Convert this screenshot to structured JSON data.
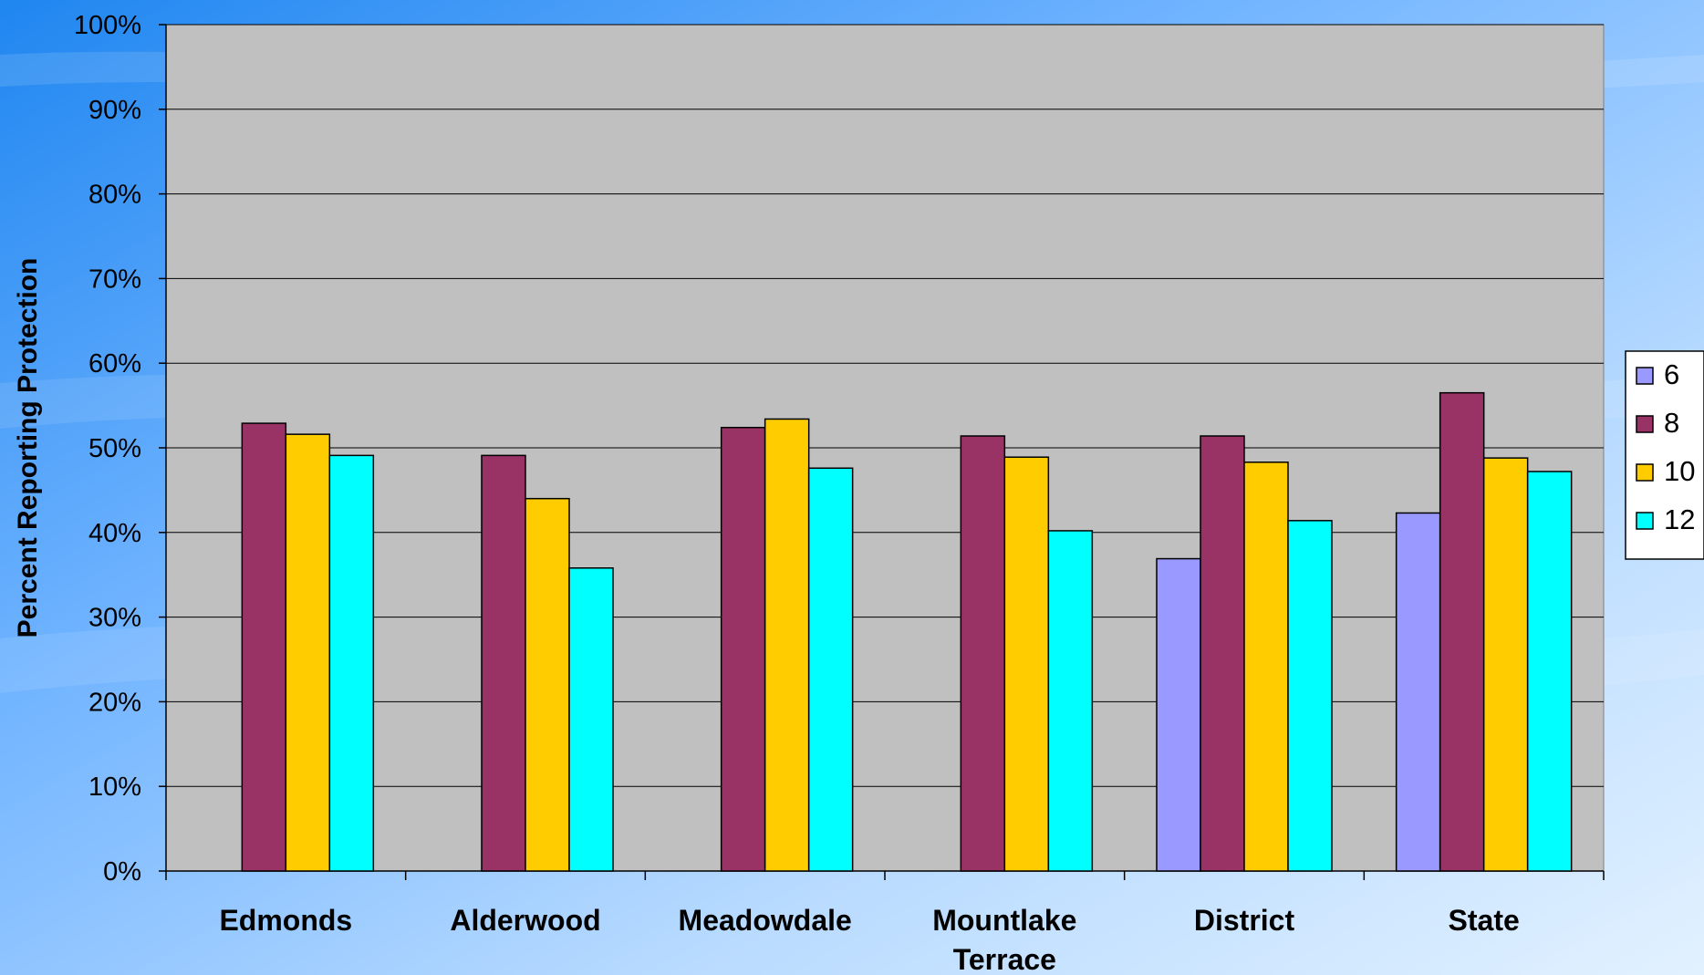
{
  "colors": {
    "plot_background": "#C0C0C0",
    "gridline": "#000000",
    "page_gradient_dark": "#2E8BE8",
    "page_gradient_light": "#D8ECFF"
  },
  "chart_data": {
    "type": "bar",
    "title": "",
    "xlabel": "",
    "ylabel": "Percent Reporting Protection",
    "ylim": [
      0,
      100
    ],
    "y_ticks": [
      "0%",
      "10%",
      "20%",
      "30%",
      "40%",
      "50%",
      "60%",
      "70%",
      "80%",
      "90%",
      "100%"
    ],
    "grid": true,
    "legend_position": "right",
    "categories": [
      [
        "Edmonds"
      ],
      [
        "Alderwood"
      ],
      [
        "Meadowdale"
      ],
      [
        "Mountlake",
        "Terrace"
      ],
      [
        "District"
      ],
      [
        "State"
      ]
    ],
    "series": [
      {
        "name": "6",
        "color": "#9999FF",
        "values": [
          null,
          null,
          null,
          null,
          36.9,
          42.3
        ]
      },
      {
        "name": "8",
        "color": "#993366",
        "values": [
          52.9,
          49.1,
          52.4,
          51.4,
          51.4,
          56.5
        ]
      },
      {
        "name": "10",
        "color": "#FFCC00",
        "values": [
          51.6,
          44.0,
          53.4,
          48.9,
          48.3,
          48.8
        ]
      },
      {
        "name": "12",
        "color": "#00FFFF",
        "values": [
          49.1,
          35.8,
          47.6,
          40.2,
          41.4,
          47.2
        ]
      }
    ]
  }
}
